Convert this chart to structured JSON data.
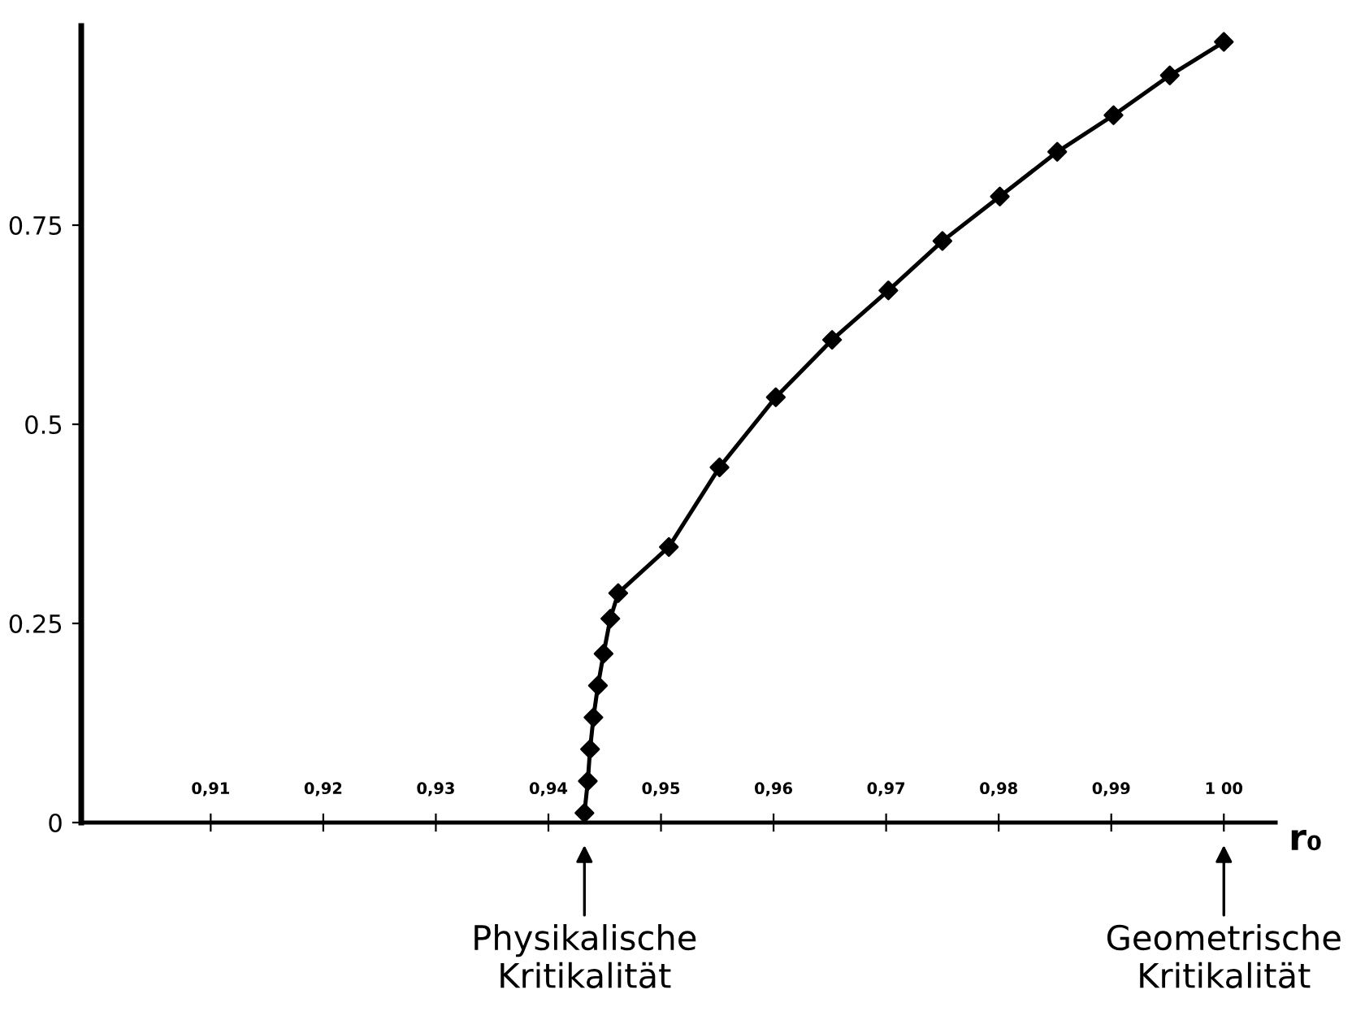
{
  "chart_data": {
    "type": "line",
    "xlabel": "r₀",
    "x": [
      0.9432,
      0.9435,
      0.9437,
      0.944,
      0.9444,
      0.9449,
      0.9455,
      0.9462,
      0.9507,
      0.9552,
      0.9602,
      0.9652,
      0.9702,
      0.975,
      0.9801,
      0.9852,
      0.9902,
      0.9952,
      1.0
    ],
    "series": [
      {
        "color": "#000000",
        "values": [
          0.012,
          0.052,
          0.092,
          0.132,
          0.172,
          0.212,
          0.256,
          0.288,
          0.346,
          0.446,
          0.534,
          0.606,
          0.668,
          0.73,
          0.786,
          0.842,
          0.888,
          0.938,
          0.98
        ]
      }
    ],
    "marker": "diamond",
    "line_style": "solid",
    "grid": false,
    "xlim": [
      0.8985,
      1.0046
    ],
    "ylim": [
      0,
      1.0
    ],
    "xticks": [
      {
        "value": 0.91,
        "label": "0,91"
      },
      {
        "value": 0.92,
        "label": "0,92"
      },
      {
        "value": 0.93,
        "label": "0,93"
      },
      {
        "value": 0.94,
        "label": "0,94"
      },
      {
        "value": 0.95,
        "label": "0,95"
      },
      {
        "value": 0.96,
        "label": "0,96"
      },
      {
        "value": 0.97,
        "label": "0,97"
      },
      {
        "value": 0.98,
        "label": "0,98"
      },
      {
        "value": 0.99,
        "label": "0,99"
      },
      {
        "value": 1.0,
        "label": "1 00"
      }
    ],
    "yticks": [
      0,
      0.25,
      0.5,
      0.75
    ],
    "annotations": [
      "Physikalische\nKritikalität",
      "Geometrische\nKritikalität"
    ]
  }
}
